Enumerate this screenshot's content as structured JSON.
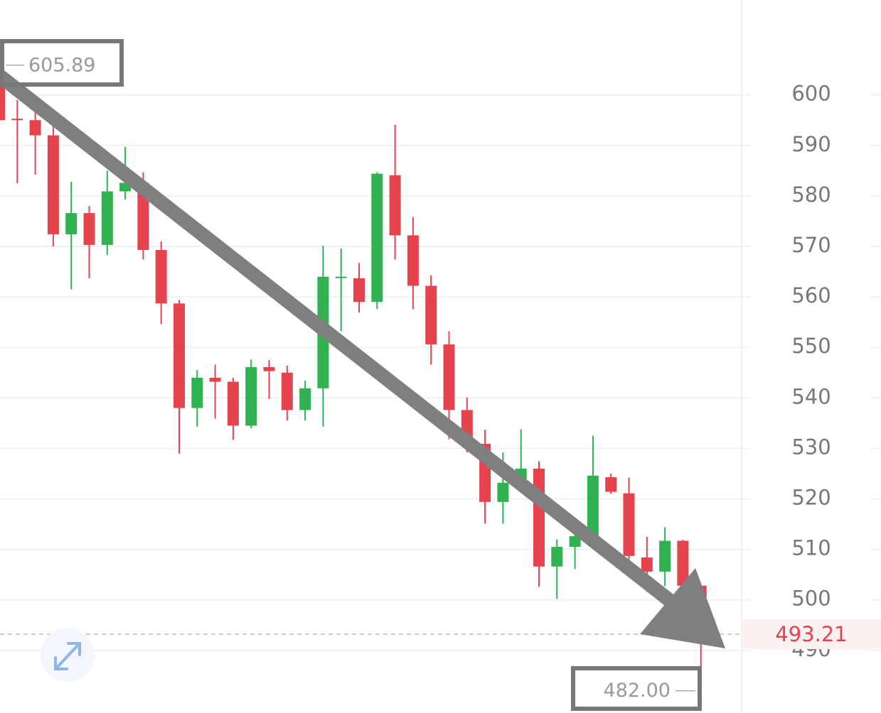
{
  "chart_data": {
    "type": "candlestick",
    "categories": [
      null,
      null,
      null,
      null,
      null,
      null,
      null,
      null,
      null,
      null,
      null,
      null,
      null,
      null,
      null,
      null,
      null,
      null,
      null,
      null,
      null,
      null,
      null,
      null,
      null,
      null,
      null,
      null,
      null,
      null,
      null,
      null,
      null,
      null,
      null,
      null,
      null,
      null,
      null,
      null
    ],
    "open": [
      602,
      595.3,
      595,
      592,
      572.4,
      576.6,
      570.3,
      580.9,
      582.6,
      569.3,
      558.7,
      538,
      544,
      543.2,
      534.5,
      546.1,
      545,
      537.6,
      541.9,
      564,
      563.7,
      559,
      584.1,
      572.2,
      562.2,
      550.6,
      537.6,
      530.9,
      519.4,
      523.2,
      526,
      506.6,
      510.5,
      512.6,
      524.3,
      521.1,
      508.4,
      505.6,
      511.7,
      502.8
    ],
    "high": [
      605.89,
      599,
      597.7,
      594,
      582.8,
      578,
      585,
      589.7,
      584.7,
      571,
      559.4,
      545.5,
      546.6,
      544,
      547.6,
      547.5,
      546.4,
      543.4,
      570.1,
      569.6,
      566.7,
      584.7,
      594.1,
      575.8,
      564.3,
      553.2,
      540.1,
      533.7,
      529.2,
      533.8,
      527.4,
      512,
      514,
      532.5,
      525,
      524.2,
      512.5,
      514.4,
      511.9,
      503
    ],
    "low": [
      586,
      582.5,
      584.2,
      570,
      561.5,
      563.7,
      568.3,
      579.3,
      567.4,
      554.6,
      529,
      534.3,
      535.9,
      531.7,
      534,
      539.8,
      535.5,
      535.5,
      534.3,
      553.2,
      556.9,
      557.6,
      567.4,
      557.6,
      546.6,
      531.8,
      529.2,
      515.1,
      515.1,
      522,
      502.6,
      500.2,
      506.1,
      510.8,
      521,
      506.4,
      501.6,
      502.7,
      499.9,
      482
    ],
    "close": [
      595,
      595,
      592,
      572.4,
      576.6,
      570.3,
      580.9,
      582.6,
      569.3,
      558.7,
      538,
      544,
      543.2,
      534.5,
      546.1,
      545.3,
      537.6,
      541.9,
      564,
      564,
      559,
      584.4,
      572.2,
      562.2,
      550.6,
      537.6,
      530.9,
      519.4,
      523.2,
      526,
      506.6,
      510.5,
      512.6,
      524.6,
      521.4,
      508.7,
      505.6,
      511.7,
      502.8,
      493.21
    ],
    "up_color": "#2fb24f",
    "down_color": "#e5444f",
    "ylim": [
      477.6,
      618.8
    ],
    "yticks": [
      490,
      500,
      510,
      520,
      530,
      540,
      550,
      560,
      570,
      580,
      590,
      600
    ],
    "grid": true,
    "high_marker": 605.89,
    "low_marker": {
      "value": 482,
      "label": "482.00"
    },
    "last_price": 493.21
  }
}
